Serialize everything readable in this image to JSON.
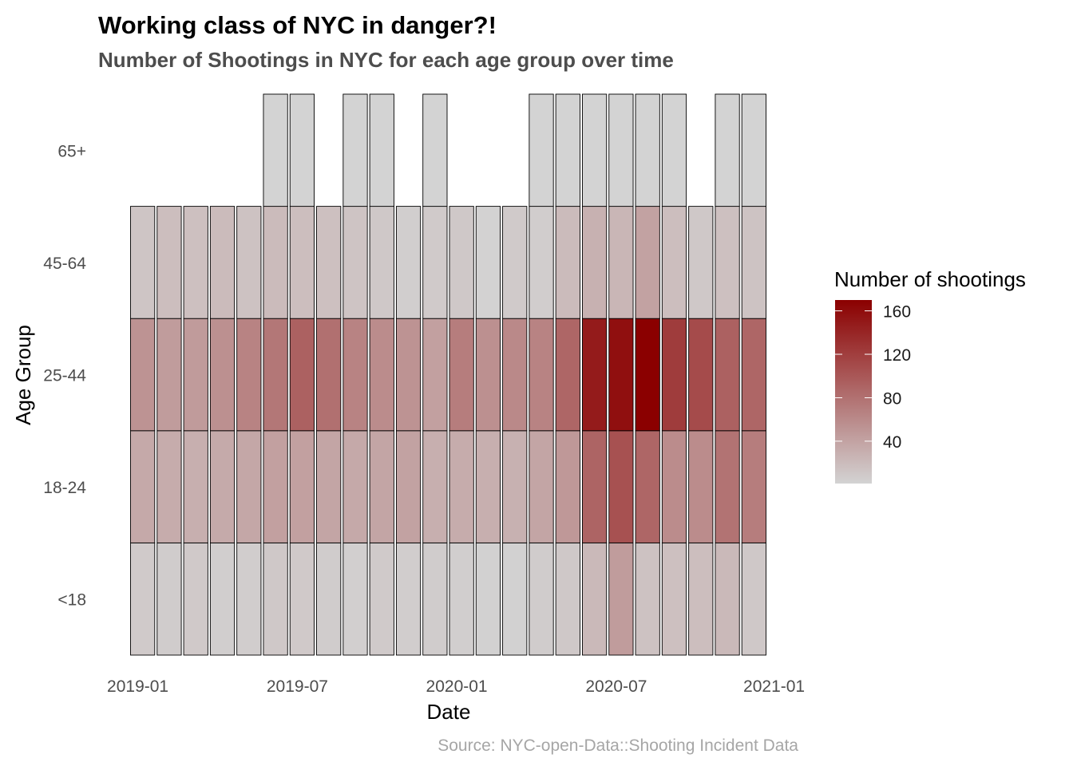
{
  "chart_data": {
    "type": "heatmap",
    "title": "Working class of NYC in danger?!",
    "subtitle": "Number of Shootings in NYC for each age group over time",
    "xlabel": "Date",
    "ylabel": "Age Group",
    "caption": "Source: NYC-open-Data::Shooting Incident Data",
    "legend_title": "Number of shootings",
    "legend_ticks": [
      40,
      80,
      120,
      160
    ],
    "legend_position": "right",
    "color_low": "#d3d3d3",
    "color_high": "#8b0000",
    "value_range": [
      1,
      170
    ],
    "grid": false,
    "x_ticks": [
      "2019-01",
      "2019-07",
      "2020-01",
      "2020-07",
      "2021-01"
    ],
    "x": [
      "2019-01",
      "2019-02",
      "2019-03",
      "2019-04",
      "2019-05",
      "2019-06",
      "2019-07",
      "2019-08",
      "2019-09",
      "2019-10",
      "2019-11",
      "2019-12",
      "2020-01",
      "2020-02",
      "2020-03",
      "2020-04",
      "2020-05",
      "2020-06",
      "2020-07",
      "2020-08",
      "2020-09",
      "2020-10",
      "2020-11",
      "2020-12"
    ],
    "categories": [
      "<18",
      "18-24",
      "25-44",
      "45-64",
      "65+"
    ],
    "series": [
      {
        "name": "<18",
        "values": [
          8,
          7,
          9,
          5,
          6,
          10,
          9,
          7,
          4,
          8,
          6,
          7,
          5,
          3,
          3,
          7,
          10,
          22,
          45,
          15,
          16,
          18,
          22,
          10
        ]
      },
      {
        "name": "18-24",
        "values": [
          35,
          32,
          30,
          34,
          36,
          42,
          42,
          38,
          35,
          38,
          40,
          30,
          32,
          30,
          28,
          38,
          48,
          90,
          105,
          88,
          58,
          58,
          78,
          70
        ]
      },
      {
        "name": "25-44",
        "values": [
          52,
          45,
          46,
          55,
          65,
          75,
          92,
          80,
          65,
          58,
          52,
          42,
          70,
          55,
          60,
          65,
          88,
          148,
          158,
          170,
          122,
          110,
          92,
          88
        ]
      },
      {
        "name": "45-64",
        "values": [
          12,
          18,
          16,
          20,
          15,
          20,
          18,
          16,
          13,
          10,
          5,
          8,
          10,
          2,
          8,
          6,
          20,
          28,
          24,
          40,
          18,
          10,
          16,
          14
        ]
      },
      {
        "name": "65+",
        "values": [
          null,
          null,
          null,
          null,
          null,
          1,
          1,
          null,
          1,
          1,
          null,
          1,
          null,
          null,
          null,
          1,
          1,
          1,
          1,
          1,
          1,
          null,
          1,
          1
        ]
      }
    ]
  }
}
